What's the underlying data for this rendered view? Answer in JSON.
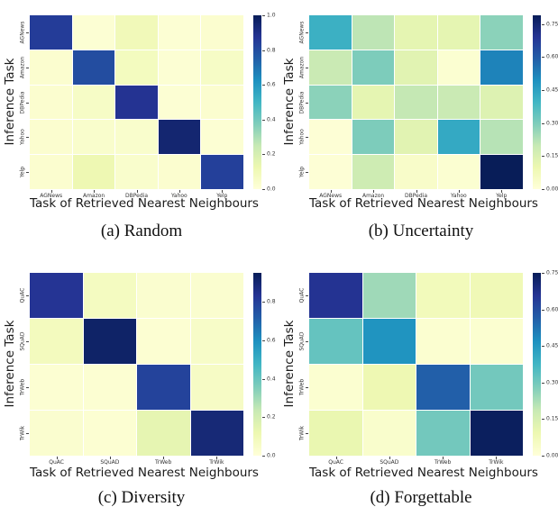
{
  "figure": {
    "background": "#ffffff",
    "text_color": "#1a1a1a"
  },
  "colormap": {
    "name": "YlGnBu",
    "stops": [
      "#ffffd9",
      "#edf8b1",
      "#c7e9b4",
      "#7fcdbb",
      "#41b6c4",
      "#1d91c0",
      "#225ea8",
      "#253494",
      "#081d58"
    ]
  },
  "chart_data": [
    {
      "type": "heatmap",
      "caption": "(a) Random",
      "xlabel": "Task of Retrieved Nearest Neighbours",
      "ylabel": "Inference Task",
      "x_categories": [
        "AGNews",
        "Amazon",
        "DBPedia",
        "Yahoo",
        "Yelp"
      ],
      "y_categories": [
        "AGNews",
        "Amazon",
        "DBPedia",
        "Yahoo",
        "Yelp"
      ],
      "values": [
        [
          0.85,
          0.02,
          0.1,
          0.02,
          0.03
        ],
        [
          0.03,
          0.8,
          0.08,
          0.02,
          0.06
        ],
        [
          0.03,
          0.06,
          0.88,
          0.02,
          0.03
        ],
        [
          0.03,
          0.04,
          0.04,
          0.95,
          0.02
        ],
        [
          0.03,
          0.12,
          0.04,
          0.03,
          0.84
        ]
      ],
      "vmin": 0.0,
      "vmax": 1.0,
      "colorbar_ticks": [
        {
          "label": "1.0",
          "value": 1.0
        },
        {
          "label": "0.8",
          "value": 0.8
        },
        {
          "label": "0.6",
          "value": 0.6
        },
        {
          "label": "0.4",
          "value": 0.4
        },
        {
          "label": "0.2",
          "value": 0.2
        },
        {
          "label": "0.0",
          "value": 0.0
        }
      ]
    },
    {
      "type": "heatmap",
      "caption": "(b) Uncertainty",
      "xlabel": "Task of Retrieved Nearest Neighbours",
      "ylabel": "Inference Task",
      "x_categories": [
        "AGNews",
        "Amazon",
        "DBPedia",
        "Yahoo",
        "Yelp"
      ],
      "y_categories": [
        "AGNews",
        "Amazon",
        "DBPedia",
        "Yahoo",
        "Yelp"
      ],
      "values": [
        [
          0.41,
          0.21,
          0.12,
          0.12,
          0.28
        ],
        [
          0.19,
          0.3,
          0.13,
          0.02,
          0.52
        ],
        [
          0.28,
          0.12,
          0.2,
          0.19,
          0.14
        ],
        [
          0.01,
          0.3,
          0.13,
          0.43,
          0.22
        ],
        [
          0.01,
          0.18,
          0.04,
          0.02,
          0.79
        ]
      ],
      "vmin": 0.0,
      "vmax": 0.79,
      "colorbar_ticks": [
        {
          "label": "0.75",
          "value": 0.75
        },
        {
          "label": "0.60",
          "value": 0.6
        },
        {
          "label": "0.45",
          "value": 0.45
        },
        {
          "label": "0.30",
          "value": 0.3
        },
        {
          "label": "0.15",
          "value": 0.15
        },
        {
          "label": "0.00",
          "value": 0.0
        }
      ]
    },
    {
      "type": "heatmap",
      "caption": "(c) Diversity",
      "xlabel": "Task of Retrieved Nearest Neighbours",
      "ylabel": "Inference Task",
      "x_categories": [
        "QuAC",
        "SQuAD",
        "TrWeb",
        "TrWik"
      ],
      "y_categories": [
        "QuAC",
        "SQuAD",
        "TrWeb",
        "TrWik"
      ],
      "values": [
        [
          0.83,
          0.07,
          0.03,
          0.03
        ],
        [
          0.08,
          0.92,
          0.02,
          0.05
        ],
        [
          0.02,
          0.02,
          0.79,
          0.06
        ],
        [
          0.03,
          0.02,
          0.14,
          0.89
        ]
      ],
      "vmin": 0.0,
      "vmax": 0.95,
      "colorbar_ticks": [
        {
          "label": "0.8",
          "value": 0.8
        },
        {
          "label": "0.6",
          "value": 0.6
        },
        {
          "label": "0.4",
          "value": 0.4
        },
        {
          "label": "0.2",
          "value": 0.2
        },
        {
          "label": "0.0",
          "value": 0.0
        }
      ]
    },
    {
      "type": "heatmap",
      "caption": "(d) Forgettable",
      "xlabel": "Task of Retrieved Nearest Neighbours",
      "ylabel": "Inference Task",
      "x_categories": [
        "QuAC",
        "SQuAD",
        "TrWeb",
        "TrWik"
      ],
      "y_categories": [
        "QuAC",
        "SQuAD",
        "TrWeb",
        "TrWik"
      ],
      "values": [
        [
          0.66,
          0.24,
          0.07,
          0.08
        ],
        [
          0.32,
          0.46,
          0.02,
          0.02
        ],
        [
          0.02,
          0.09,
          0.56,
          0.3
        ],
        [
          0.1,
          0.03,
          0.3,
          0.74
        ]
      ],
      "vmin": 0.0,
      "vmax": 0.75,
      "colorbar_ticks": [
        {
          "label": "0.75",
          "value": 0.75
        },
        {
          "label": "0.60",
          "value": 0.6
        },
        {
          "label": "0.45",
          "value": 0.45
        },
        {
          "label": "0.30",
          "value": 0.3
        },
        {
          "label": "0.15",
          "value": 0.15
        },
        {
          "label": "0.00",
          "value": 0.0
        }
      ]
    }
  ]
}
